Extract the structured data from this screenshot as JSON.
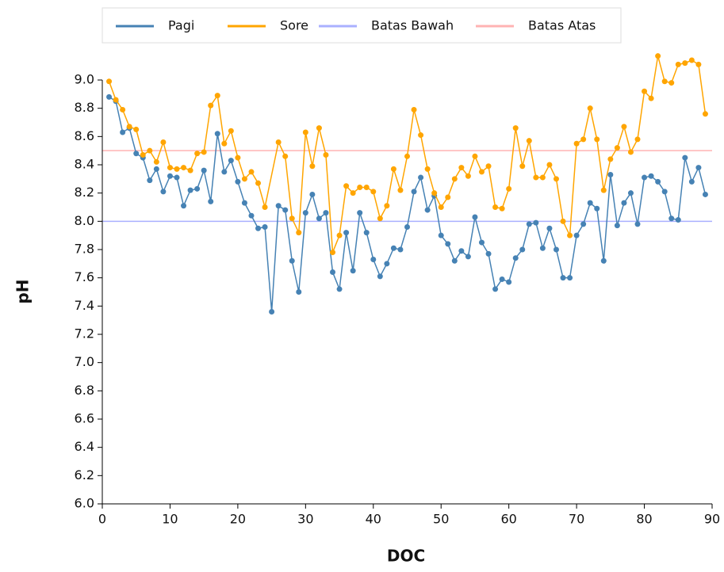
{
  "chart_data": {
    "type": "line",
    "xlabel": "DOC",
    "ylabel": "pH",
    "xlim": [
      0,
      90
    ],
    "xticks": [
      0,
      10,
      20,
      30,
      40,
      50,
      60,
      70,
      80,
      90
    ],
    "ylim": [
      6,
      9
    ],
    "yticks": [
      {
        "value": 6,
        "label": "6.0"
      },
      {
        "value": 6.2,
        "label": "6.2"
      },
      {
        "value": 6.4,
        "label": "6.4"
      },
      {
        "value": 6.6,
        "label": "6.6"
      },
      {
        "value": 6.8,
        "label": "6.8"
      },
      {
        "value": 7,
        "label": "7.0"
      },
      {
        "value": 7.2,
        "label": "7.2"
      },
      {
        "value": 7.4,
        "label": "7.4"
      },
      {
        "value": 7.6,
        "label": "7.6"
      },
      {
        "value": 7.8,
        "label": "7.8"
      },
      {
        "value": 8,
        "label": "8.0"
      },
      {
        "value": 8.2,
        "label": "8.2"
      },
      {
        "value": 8.4,
        "label": "8.4"
      },
      {
        "value": 8.6,
        "label": "8.6"
      },
      {
        "value": 8.8,
        "label": "8.8"
      },
      {
        "value": 9,
        "label": "9.0"
      }
    ],
    "series": [
      {
        "name": "Pagi",
        "color": "#4682b4",
        "x": [
          1,
          2,
          3,
          4,
          5,
          6,
          7,
          8,
          9,
          10,
          11,
          12,
          13,
          14,
          15,
          16,
          17,
          18,
          19,
          20,
          21,
          22,
          23,
          24,
          25,
          26,
          27,
          28,
          29,
          30,
          31,
          32,
          33,
          34,
          35,
          36,
          37,
          38,
          39,
          40,
          41,
          42,
          43,
          44,
          45,
          46,
          47,
          48,
          49,
          50,
          51,
          52,
          53,
          54,
          55,
          56,
          57,
          58,
          59,
          60,
          61,
          62,
          63,
          64,
          65,
          66,
          67,
          68,
          69,
          70,
          71,
          72,
          73,
          74,
          75,
          76,
          77,
          78,
          79,
          80,
          81,
          82,
          83,
          84,
          85,
          86,
          87,
          88,
          89
        ],
        "values": [
          8.88,
          8.85,
          8.63,
          8.66,
          8.48,
          8.45,
          8.29,
          8.37,
          8.21,
          8.32,
          8.31,
          8.11,
          8.22,
          8.23,
          8.36,
          8.14,
          8.62,
          8.35,
          8.43,
          8.28,
          8.13,
          8.04,
          7.95,
          7.96,
          7.36,
          8.11,
          8.08,
          7.72,
          7.5,
          8.06,
          8.19,
          8.02,
          8.06,
          7.64,
          7.52,
          7.92,
          7.65,
          8.06,
          7.92,
          7.73,
          7.61,
          7.7,
          7.81,
          7.8,
          7.96,
          8.21,
          8.31,
          8.08,
          8.18,
          7.9,
          7.84,
          7.72,
          7.79,
          7.75,
          8.03,
          7.85,
          7.77,
          7.52,
          7.59,
          7.57,
          7.74,
          7.8,
          7.98,
          7.99,
          7.81,
          7.95,
          7.8,
          7.6,
          7.6,
          7.9,
          7.98,
          8.13,
          8.09,
          7.72,
          8.33,
          7.97,
          8.13,
          8.2,
          7.98,
          8.31,
          8.32,
          8.28,
          8.21,
          8.02,
          8.01,
          8.45,
          8.28,
          8.38,
          8.19
        ]
      },
      {
        "name": "Sore",
        "color": "#ffa500",
        "x": [
          1,
          2,
          3,
          4,
          5,
          6,
          7,
          8,
          9,
          10,
          11,
          12,
          13,
          14,
          15,
          16,
          17,
          18,
          19,
          20,
          21,
          22,
          23,
          24,
          26,
          27,
          28,
          29,
          30,
          31,
          32,
          33,
          34,
          35,
          36,
          37,
          38,
          39,
          40,
          41,
          42,
          43,
          44,
          45,
          46,
          47,
          48,
          49,
          50,
          51,
          52,
          53,
          54,
          55,
          56,
          57,
          58,
          59,
          60,
          61,
          62,
          63,
          64,
          65,
          66,
          67,
          68,
          69,
          70,
          71,
          72,
          73,
          74,
          75,
          76,
          77,
          78,
          79,
          80,
          81,
          82,
          83,
          84,
          85,
          86,
          87,
          88,
          89
        ],
        "values": [
          8.99,
          8.86,
          8.79,
          8.67,
          8.65,
          8.47,
          8.5,
          8.42,
          8.56,
          8.38,
          8.37,
          8.38,
          8.36,
          8.48,
          8.49,
          8.82,
          8.89,
          8.55,
          8.64,
          8.45,
          8.3,
          8.35,
          8.27,
          8.1,
          8.56,
          8.46,
          8.02,
          7.92,
          8.63,
          8.39,
          8.66,
          8.47,
          7.78,
          7.9,
          8.25,
          8.2,
          8.24,
          8.24,
          8.21,
          8.02,
          8.11,
          8.37,
          8.22,
          8.46,
          8.79,
          8.61,
          8.37,
          8.2,
          8.1,
          8.17,
          8.3,
          8.38,
          8.32,
          8.46,
          8.35,
          8.39,
          8.1,
          8.09,
          8.23,
          8.66,
          8.39,
          8.57,
          8.31,
          8.31,
          8.4,
          8.3,
          8,
          7.9,
          8.55,
          8.58,
          8.8,
          8.58,
          8.22,
          8.44,
          8.52,
          8.67,
          8.49,
          8.58,
          8.92,
          8.87,
          9.17,
          8.99,
          8.98,
          9.11,
          9.12,
          9.14,
          9.11,
          8.76
        ]
      }
    ],
    "reference_lines": [
      {
        "name": "Batas Bawah",
        "value": 8,
        "color": "#aab0ff"
      },
      {
        "name": "Batas Atas",
        "value": 8.5,
        "color": "#ffb3b3"
      }
    ]
  }
}
